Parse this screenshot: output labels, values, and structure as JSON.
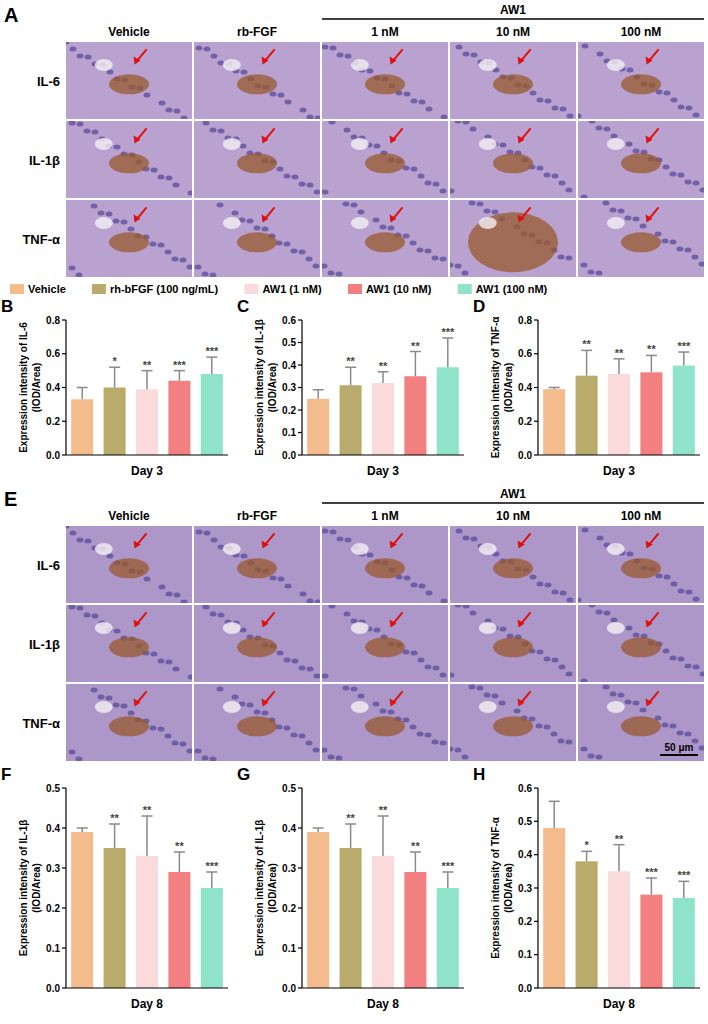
{
  "legend_items": [
    {
      "name": "Vehicle",
      "color": "#f4bb8c"
    },
    {
      "name": "rh-bFGF (100 ng/mL)",
      "color": "#b8ab6c"
    },
    {
      "name": "AW1 (1 nM)",
      "color": "#fadada"
    },
    {
      "name": "AW1 (10 nM)",
      "color": "#f28080"
    },
    {
      "name": "AW1 (100 nM)",
      "color": "#8fe3c9"
    }
  ],
  "micrographs": [
    {
      "letter": "A",
      "group_label": "AW1",
      "columns": [
        "Vehicle",
        "rb-FGF",
        "1 nM",
        "10 nM",
        "100 nM"
      ],
      "rows": [
        "IL-6",
        "IL-1β",
        "TNF-α"
      ]
    },
    {
      "letter": "E",
      "group_label": "AW1",
      "columns": [
        "Vehicle",
        "rb-FGF",
        "1 nM",
        "10 nM",
        "100 nM"
      ],
      "rows": [
        "IL-6",
        "IL-1β",
        "TNF-α"
      ],
      "scale_bar": "50 μm"
    }
  ],
  "chart_data": [
    {
      "type": "bar",
      "letter": "B",
      "categories": [
        null,
        null,
        null,
        null,
        null
      ],
      "colors": [
        "#f4bb8c",
        "#b8ab6c",
        "#fadada",
        "#f28080",
        "#8fe3c9"
      ],
      "values": [
        0.33,
        0.4,
        0.39,
        0.44,
        0.48
      ],
      "errors": [
        0.07,
        0.12,
        0.11,
        0.06,
        0.1
      ],
      "significance": [
        null,
        "*",
        "**",
        "***",
        "***"
      ],
      "y_label": [
        "Expression intensity of IL-6",
        "(IOD/Area)"
      ],
      "x_label": "Day 3",
      "ylim": [
        0,
        0.8
      ],
      "yticks": [
        {
          "value": 0,
          "label": "0.0"
        },
        0.2,
        0.4,
        0.6,
        0.8
      ],
      "tick_labels": "y"
    },
    {
      "type": "bar",
      "letter": "C",
      "categories": [
        null,
        null,
        null,
        null,
        null
      ],
      "colors": [
        "#f4bb8c",
        "#b8ab6c",
        "#fadada",
        "#f28080",
        "#8fe3c9"
      ],
      "values": [
        0.25,
        0.31,
        0.32,
        0.35,
        0.39
      ],
      "errors": [
        0.04,
        0.08,
        0.05,
        0.11,
        0.13
      ],
      "significance": [
        null,
        "**",
        "**",
        "**",
        "***"
      ],
      "y_label": [
        "Expression intensity of IL-1β",
        "(IOD/Area)"
      ],
      "x_label": "Day 3",
      "ylim": [
        0,
        0.6
      ],
      "yticks": [
        {
          "value": 0,
          "label": "0.0"
        },
        0.1,
        0.2,
        0.3,
        0.4,
        0.5,
        0.6
      ],
      "tick_labels": "y"
    },
    {
      "type": "bar",
      "letter": "D",
      "categories": [
        null,
        null,
        null,
        null,
        null
      ],
      "colors": [
        "#f4bb8c",
        "#b8ab6c",
        "#fadada",
        "#f28080",
        "#8fe3c9"
      ],
      "values": [
        0.39,
        0.47,
        0.48,
        0.49,
        0.53
      ],
      "errors": [
        0.01,
        0.15,
        0.09,
        0.1,
        0.08
      ],
      "significance": [
        null,
        "**",
        "**",
        "**",
        "***"
      ],
      "y_label": [
        "Expression intensity of TNF-α",
        "(IOD/Area)"
      ],
      "x_label": "Day 3",
      "ylim": [
        0,
        0.8
      ],
      "yticks": [
        {
          "value": 0,
          "label": "0.0"
        },
        0.2,
        0.4,
        0.6,
        0.8
      ],
      "tick_labels": "y"
    },
    {
      "type": "bar",
      "letter": "F",
      "categories": [
        null,
        null,
        null,
        null,
        null
      ],
      "colors": [
        "#f4bb8c",
        "#b8ab6c",
        "#fadada",
        "#f28080",
        "#8fe3c9"
      ],
      "values": [
        0.39,
        0.35,
        0.33,
        0.29,
        0.25
      ],
      "errors": [
        0.01,
        0.06,
        0.1,
        0.05,
        0.04
      ],
      "significance": [
        null,
        "**",
        "**",
        "**",
        "***"
      ],
      "y_label": [
        "Expression intensity of IL-1β",
        "(IOD/Area)"
      ],
      "x_label": "Day 8",
      "ylim": [
        0,
        0.5
      ],
      "yticks": [
        {
          "value": 0,
          "label": "0.0"
        },
        0.1,
        0.2,
        0.3,
        0.4,
        0.5
      ],
      "tick_labels": "y"
    },
    {
      "type": "bar",
      "letter": "G",
      "categories": [
        null,
        null,
        null,
        null,
        null
      ],
      "colors": [
        "#f4bb8c",
        "#b8ab6c",
        "#fadada",
        "#f28080",
        "#8fe3c9"
      ],
      "values": [
        0.39,
        0.35,
        0.33,
        0.29,
        0.25
      ],
      "errors": [
        0.01,
        0.06,
        0.1,
        0.05,
        0.04
      ],
      "significance": [
        null,
        "**",
        "**",
        "**",
        "***"
      ],
      "y_label": [
        "Expression intensity of IL-1β",
        "(IOD/Area)"
      ],
      "x_label": "Day 8",
      "ylim": [
        0,
        0.5
      ],
      "yticks": [
        {
          "value": 0,
          "label": "0.0"
        },
        0.1,
        0.2,
        0.3,
        0.4,
        0.5
      ],
      "tick_labels": "y"
    },
    {
      "type": "bar",
      "letter": "H",
      "categories": [
        null,
        null,
        null,
        null,
        null
      ],
      "colors": [
        "#f4bb8c",
        "#b8ab6c",
        "#fadada",
        "#f28080",
        "#8fe3c9"
      ],
      "values": [
        0.48,
        0.38,
        0.35,
        0.28,
        0.27
      ],
      "errors": [
        0.08,
        0.03,
        0.08,
        0.05,
        0.05
      ],
      "significance": [
        null,
        "*",
        "**",
        "***",
        "***"
      ],
      "y_label": [
        "Expression intensity of TNF-α",
        "(IOD/Area)"
      ],
      "x_label": "Day 8",
      "ylim": [
        0,
        0.6
      ],
      "yticks": [
        {
          "value": 0,
          "label": "0.0"
        },
        0.1,
        0.2,
        0.3,
        0.4,
        0.5,
        0.6
      ],
      "tick_labels": "y"
    }
  ]
}
